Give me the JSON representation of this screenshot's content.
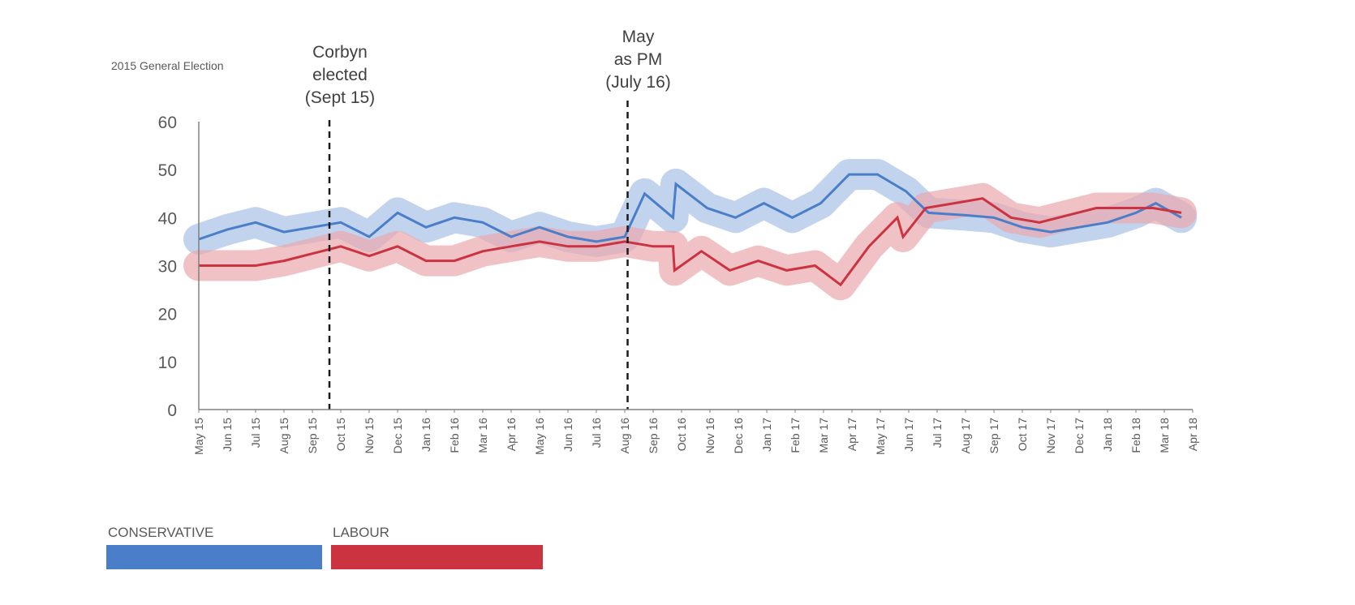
{
  "top_label": "2015 General Election",
  "annotations": [
    {
      "lines": [
        "Corbyn",
        "elected",
        "(Sept 15)"
      ],
      "at": 4.6
    },
    {
      "lines": [
        "May",
        "as PM",
        "(July 16)"
      ],
      "at": 15.1
    }
  ],
  "legend": [
    {
      "label": "CONSERVATIVE",
      "color": "#4a7ec9"
    },
    {
      "label": "LABOUR",
      "color": "#cc3340"
    }
  ],
  "chart_data": {
    "type": "line",
    "x_ticks": [
      "May 15",
      "Jun 15",
      "Jul 15",
      "Aug 15",
      "Sep 15",
      "Oct 15",
      "Nov 15",
      "Dec 15",
      "Jan 16",
      "Feb 16",
      "Mar 16",
      "Apr 16",
      "May 16",
      "Jun 16",
      "Jul 16",
      "Aug 16",
      "Sep 16",
      "Oct 16",
      "Nov 16",
      "Dec 16",
      "Jan 17",
      "Feb 17",
      "Mar 17",
      "Apr 17",
      "May 17",
      "Jun 17",
      "Jul 17",
      "Aug 17",
      "Sep 17",
      "Oct 17",
      "Nov 17",
      "Dec 17",
      "Jan 18",
      "Feb 18",
      "Mar 18",
      "Apr 18"
    ],
    "ylim": [
      0,
      60
    ],
    "y_ticks": [
      0,
      10,
      20,
      30,
      40,
      50,
      60
    ],
    "xlabel": "",
    "ylabel": "",
    "series": [
      {
        "name": "CONSERVATIVE",
        "color": "#4a7ec9",
        "band_color": "#a7c1e6",
        "points": [
          [
            0,
            35.5
          ],
          [
            1,
            37.5
          ],
          [
            2,
            39
          ],
          [
            3,
            37
          ],
          [
            4,
            38
          ],
          [
            5,
            39
          ],
          [
            6,
            36
          ],
          [
            7,
            41
          ],
          [
            8,
            38
          ],
          [
            9,
            40
          ],
          [
            10,
            39
          ],
          [
            11,
            36
          ],
          [
            12,
            38
          ],
          [
            13,
            36
          ],
          [
            14,
            35
          ],
          [
            15,
            36
          ],
          [
            15.7,
            45
          ],
          [
            16.7,
            40
          ],
          [
            16.8,
            47
          ],
          [
            17.9,
            42
          ],
          [
            18.9,
            40
          ],
          [
            19.9,
            43
          ],
          [
            20.9,
            40
          ],
          [
            21.9,
            43
          ],
          [
            22.9,
            49
          ],
          [
            23.9,
            49
          ],
          [
            24.9,
            45.5
          ],
          [
            25.7,
            41
          ],
          [
            27,
            40.5
          ],
          [
            28,
            40
          ],
          [
            29,
            38
          ],
          [
            30,
            37
          ],
          [
            31,
            38
          ],
          [
            32,
            39
          ],
          [
            33,
            41
          ],
          [
            33.7,
            43
          ],
          [
            34.6,
            40
          ]
        ]
      },
      {
        "name": "LABOUR",
        "color": "#cc3340",
        "band_color": "#eaa8ae",
        "points": [
          [
            0,
            30
          ],
          [
            1,
            30
          ],
          [
            2,
            30
          ],
          [
            3,
            31
          ],
          [
            4,
            32.5
          ],
          [
            5,
            34
          ],
          [
            6,
            32
          ],
          [
            7,
            34
          ],
          [
            8,
            31
          ],
          [
            9,
            31
          ],
          [
            10,
            33
          ],
          [
            11,
            34
          ],
          [
            12,
            35
          ],
          [
            13,
            34
          ],
          [
            14,
            34
          ],
          [
            15,
            35
          ],
          [
            16,
            34
          ],
          [
            16.7,
            34
          ],
          [
            16.75,
            29
          ],
          [
            17.7,
            33
          ],
          [
            18.7,
            29
          ],
          [
            19.7,
            31
          ],
          [
            20.7,
            29
          ],
          [
            21.7,
            30
          ],
          [
            22.6,
            26
          ],
          [
            23.6,
            34
          ],
          [
            24.6,
            40
          ],
          [
            24.8,
            36
          ],
          [
            25.6,
            42
          ],
          [
            26.6,
            43
          ],
          [
            27.6,
            44
          ],
          [
            28.6,
            40
          ],
          [
            29.6,
            39
          ],
          [
            30.6,
            40.5
          ],
          [
            31.6,
            42
          ],
          [
            32.6,
            42
          ],
          [
            33.6,
            42
          ],
          [
            34.6,
            41
          ]
        ]
      }
    ],
    "grid": false,
    "legend_position": "bottom-left"
  }
}
